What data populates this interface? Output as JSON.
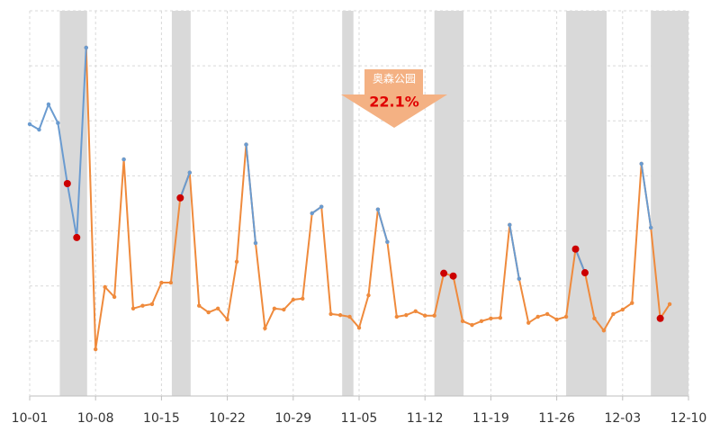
{
  "chart_data": {
    "type": "line",
    "x": [
      0,
      1,
      2,
      3,
      4,
      5,
      6,
      7,
      8,
      9,
      10,
      11,
      12,
      13,
      14,
      15,
      16,
      17,
      18,
      19,
      20,
      21,
      22,
      23,
      24,
      25,
      26,
      27,
      28,
      29,
      30,
      31,
      32,
      33,
      34,
      35,
      36,
      37,
      38,
      39,
      40,
      41,
      42,
      43,
      44,
      45,
      46,
      47,
      48,
      49,
      50,
      51,
      52,
      53,
      54,
      55,
      56,
      57,
      58,
      59,
      60,
      61,
      62,
      63,
      64,
      65,
      66,
      67,
      68
    ],
    "series": [
      {
        "color": "#ef8a3c",
        "values": [
          null,
          null,
          null,
          null,
          null,
          null,
          6.33,
          0.85,
          1.98,
          1.8,
          4.3,
          1.59,
          1.64,
          1.67,
          2.06,
          2.06,
          3.6,
          4.06,
          1.64,
          1.52,
          1.59,
          1.39,
          2.44,
          4.57,
          2.78,
          1.23,
          1.59,
          1.57,
          1.75,
          1.77,
          3.32,
          3.44,
          1.49,
          1.47,
          1.44,
          1.24,
          1.83,
          3.39,
          2.8,
          1.44,
          1.47,
          1.54,
          1.46,
          1.46,
          2.23,
          2.18,
          1.36,
          1.29,
          1.36,
          1.41,
          1.42,
          3.11,
          2.13,
          1.33,
          1.44,
          1.49,
          1.39,
          1.44,
          2.67,
          2.24,
          1.41,
          1.19,
          1.49,
          1.57,
          1.69,
          4.22,
          3.06,
          1.41,
          1.67
        ]
      },
      {
        "color": "#6a9bd0",
        "values": [
          4.94,
          4.84,
          5.3,
          4.96,
          3.86,
          2.88,
          6.33,
          null,
          null,
          null,
          4.3,
          null,
          null,
          null,
          null,
          null,
          3.6,
          4.06,
          null,
          null,
          null,
          null,
          null,
          4.57,
          2.78,
          null,
          null,
          null,
          null,
          null,
          3.32,
          3.44,
          null,
          null,
          null,
          null,
          null,
          3.39,
          2.8,
          null,
          null,
          null,
          null,
          null,
          null,
          null,
          null,
          null,
          null,
          null,
          null,
          3.11,
          2.13,
          null,
          null,
          null,
          null,
          null,
          2.67,
          2.24,
          null,
          null,
          null,
          null,
          null,
          4.22,
          3.06,
          null,
          null
        ]
      }
    ],
    "highlight_indices": [
      4,
      5,
      16,
      44,
      45,
      58,
      59,
      67
    ],
    "highlight_color": "#cc0000",
    "bands": [
      [
        3.2,
        6.1
      ],
      [
        15.1,
        17.1
      ],
      [
        33.2,
        34.4
      ],
      [
        43,
        46.1
      ],
      [
        57,
        61.3
      ],
      [
        66,
        70
      ]
    ],
    "band_color": "#d9d9d9",
    "xlim": [
      0,
      70
    ],
    "xticks": [
      {
        "value": 0,
        "label": "10-01"
      },
      {
        "value": 7,
        "label": "10-08"
      },
      {
        "value": 14,
        "label": "10-15"
      },
      {
        "value": 21,
        "label": "10-22"
      },
      {
        "value": 28,
        "label": "10-29"
      },
      {
        "value": 35,
        "label": "11-05"
      },
      {
        "value": 42,
        "label": "11-12"
      },
      {
        "value": 49,
        "label": "11-19"
      },
      {
        "value": 56,
        "label": "11-26"
      },
      {
        "value": 63,
        "label": "12-03"
      },
      {
        "value": 70,
        "label": "12-10"
      }
    ],
    "ylim": [
      0,
      7
    ],
    "yticks": [
      0,
      1,
      2,
      3,
      4,
      5,
      6,
      7
    ],
    "show_ytick_labels": false,
    "grid": true,
    "annotation": {
      "text": "奥森公园",
      "label": "22.1%"
    }
  }
}
